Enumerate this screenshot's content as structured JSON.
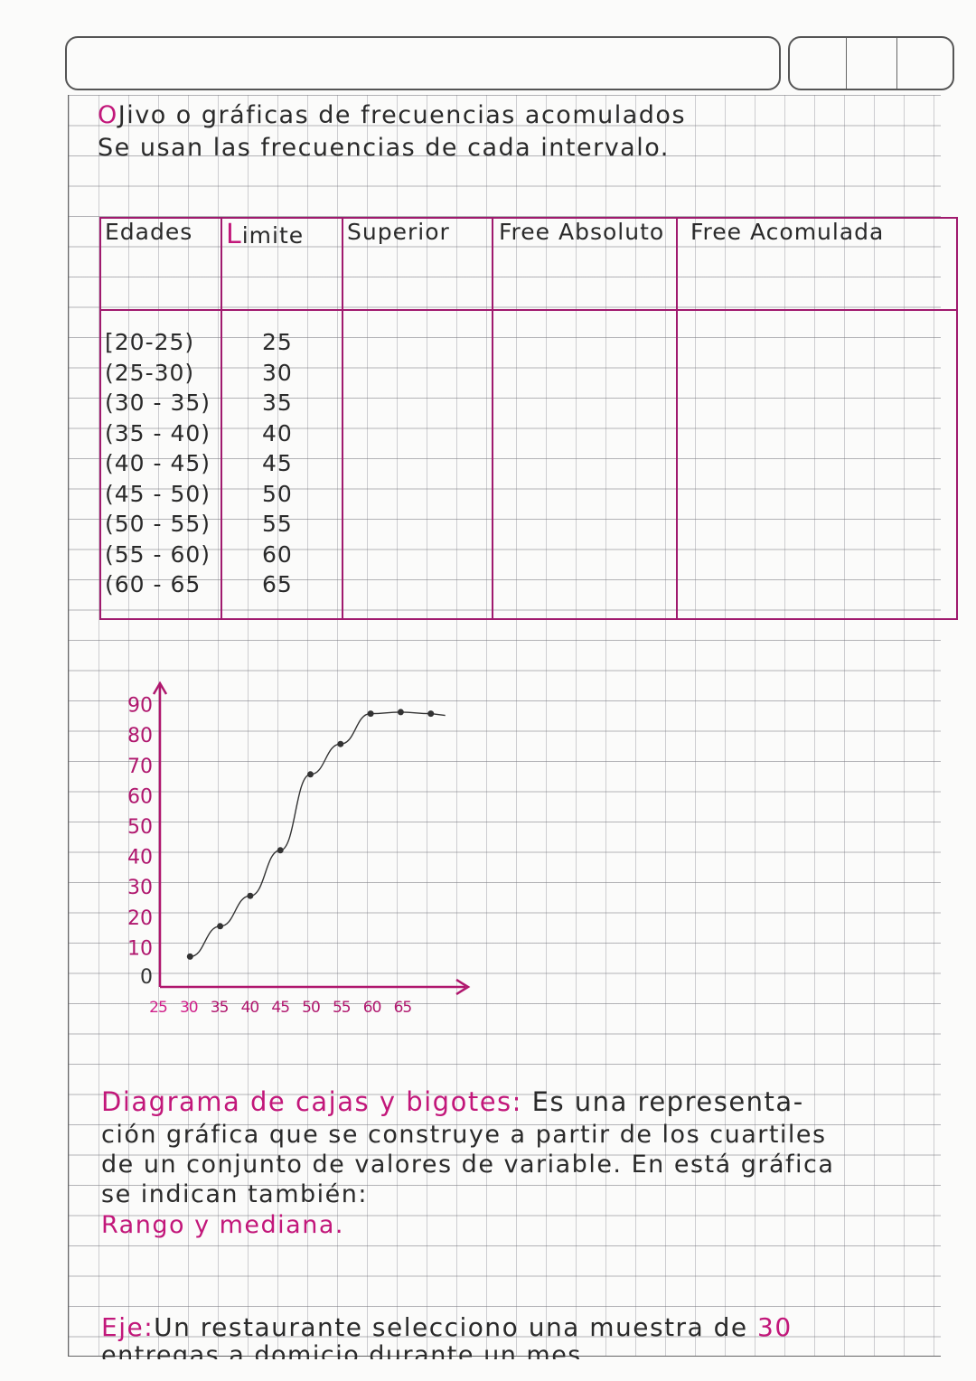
{
  "heading": {
    "line1_initial": "O",
    "line1": "Jivo o gráficas de frecuencias acomulados",
    "line2": "Se usan las frecuencias de cada intervalo."
  },
  "table": {
    "headers": [
      "Edades",
      "Limite",
      "Superior",
      "Free Absoluto",
      "Free Acomulada"
    ],
    "rows": [
      [
        "[20-25)",
        "25"
      ],
      [
        "(25-30)",
        "30"
      ],
      [
        "(30 - 35)",
        "35"
      ],
      [
        "(35 - 40)",
        "40"
      ],
      [
        "(40 - 45)",
        "45"
      ],
      [
        "(45 - 50)",
        "50"
      ],
      [
        "(50 - 55)",
        "55"
      ],
      [
        "(55 - 60)",
        "60"
      ],
      [
        "(60 - 65",
        "65"
      ]
    ]
  },
  "chart_data": {
    "type": "line",
    "y_ticks": [
      "0",
      "10",
      "20",
      "30",
      "40",
      "50",
      "60",
      "70",
      "80",
      "90"
    ],
    "x_ticks": [
      "25",
      "30",
      "35",
      "40",
      "45",
      "50",
      "55",
      "60",
      "65"
    ],
    "ylim": [
      0,
      95
    ],
    "xlim": [
      25,
      75
    ],
    "points": [
      [
        30,
        10
      ],
      [
        35,
        20
      ],
      [
        40,
        30
      ],
      [
        45,
        45
      ],
      [
        50,
        70
      ],
      [
        55,
        80
      ],
      [
        60,
        90
      ],
      [
        65,
        90.5
      ],
      [
        70,
        90
      ]
    ],
    "axis_color": "#b0176e",
    "line_color": "#333333"
  },
  "definition": {
    "term": "Diagrama de cajas y bigotes:",
    "line1_rest": "Es una representa-",
    "line2": "ción gráfica que se construye a partir de los cuartiles",
    "line3a": "de un conjunto de valores de variable.",
    "line3b": "En está gráfica",
    "line4": "se indican también:",
    "line5": "Rango y mediana."
  },
  "example": {
    "label": "Eje:",
    "line1": "Un restaurante selecciono una muestra de",
    "number": "30",
    "line2": "entregas a domicio durante un mes"
  }
}
